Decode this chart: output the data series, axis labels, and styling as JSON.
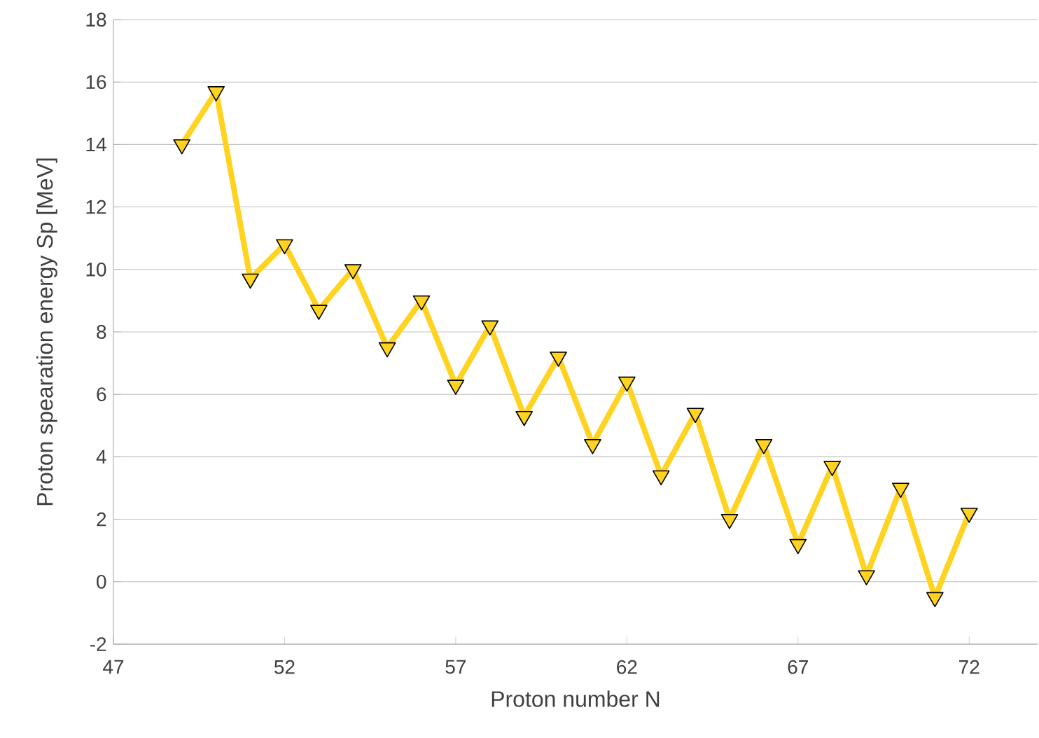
{
  "chart_data": {
    "type": "line",
    "xlabel": "Proton number N",
    "ylabel": "Proton spearation energy Sp [MeV]",
    "x": [
      49,
      50,
      51,
      52,
      53,
      54,
      55,
      56,
      57,
      58,
      59,
      60,
      61,
      62,
      63,
      64,
      65,
      66,
      67,
      68,
      69,
      70,
      71,
      72
    ],
    "series": [
      {
        "color": "#ffd320",
        "values": [
          14.0,
          15.7,
          9.7,
          10.8,
          8.7,
          10.0,
          7.5,
          9.0,
          6.3,
          8.2,
          5.3,
          7.2,
          4.4,
          6.4,
          3.4,
          5.4,
          2.0,
          4.4,
          1.2,
          3.7,
          0.2,
          3.0,
          -0.5,
          2.2
        ]
      }
    ],
    "xlim": [
      47,
      74
    ],
    "xticks": [
      47,
      52,
      57,
      62,
      67,
      72
    ],
    "ylim": [
      -2,
      18
    ],
    "yticks": [
      -2,
      0,
      2,
      4,
      6,
      8,
      10,
      12,
      14,
      16,
      18
    ],
    "grid": "y",
    "marker": "triangle",
    "line_style": "solid"
  }
}
